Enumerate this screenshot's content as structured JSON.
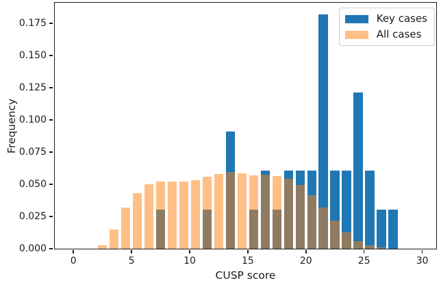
{
  "figure": {
    "background": "#ffffff",
    "text_color": "#1a1a1a"
  },
  "chart_data": {
    "type": "bar",
    "subtype": "overlapping-histogram",
    "title": "",
    "xlabel": "CUSP score",
    "ylabel": "Frequency",
    "xlim": [
      -1.6,
      31.2
    ],
    "ylim": [
      0,
      0.1909
    ],
    "xticks": [
      0,
      5,
      10,
      15,
      20,
      25,
      30
    ],
    "xtick_labels": [
      "0",
      "5",
      "10",
      "15",
      "20",
      "25",
      "30"
    ],
    "yticks": [
      0,
      0.025,
      0.05,
      0.075,
      0.1,
      0.125,
      0.15,
      0.175
    ],
    "ytick_labels": [
      "0.000",
      "0.025",
      "0.050",
      "0.075",
      "0.100",
      "0.125",
      "0.150",
      "0.175"
    ],
    "grid": false,
    "bin_width": 1,
    "bar_width": 0.8,
    "axis_color": "#1a1a1a",
    "legend": {
      "position": "top-right",
      "entries": [
        "Key cases",
        "All cases"
      ]
    },
    "series": [
      {
        "name": "Key cases",
        "color": "#1f77b4",
        "opacity": 1,
        "bin_centers": [
          7.5,
          11.5,
          13.5,
          15.5,
          16.5,
          17.5,
          18.5,
          19.5,
          20.5,
          21.5,
          22.5,
          23.5,
          24.5,
          25.5,
          26.5,
          27.5
        ],
        "frequencies": [
          0.0303,
          0.0303,
          0.0909,
          0.0303,
          0.0606,
          0.0303,
          0.0606,
          0.0606,
          0.0606,
          0.1818,
          0.0606,
          0.0606,
          0.1212,
          0.0606,
          0.0303,
          0.0303
        ]
      },
      {
        "name": "All cases",
        "color": "#ff7f0e",
        "opacity": 0.5,
        "bin_centers": [
          2.5,
          3.5,
          4.5,
          5.5,
          6.5,
          7.5,
          8.5,
          9.5,
          10.5,
          11.5,
          12.5,
          13.5,
          14.5,
          15.5,
          16.5,
          17.5,
          18.5,
          19.5,
          20.5,
          21.5,
          22.5,
          23.5,
          24.5,
          25.5,
          26.5
        ],
        "frequencies": [
          0.0025,
          0.0151,
          0.0319,
          0.0432,
          0.0498,
          0.0523,
          0.052,
          0.052,
          0.0534,
          0.0558,
          0.0577,
          0.0598,
          0.0584,
          0.057,
          0.0574,
          0.0563,
          0.054,
          0.0493,
          0.0415,
          0.0317,
          0.0216,
          0.0128,
          0.006,
          0.0028,
          0.001
        ]
      }
    ]
  }
}
